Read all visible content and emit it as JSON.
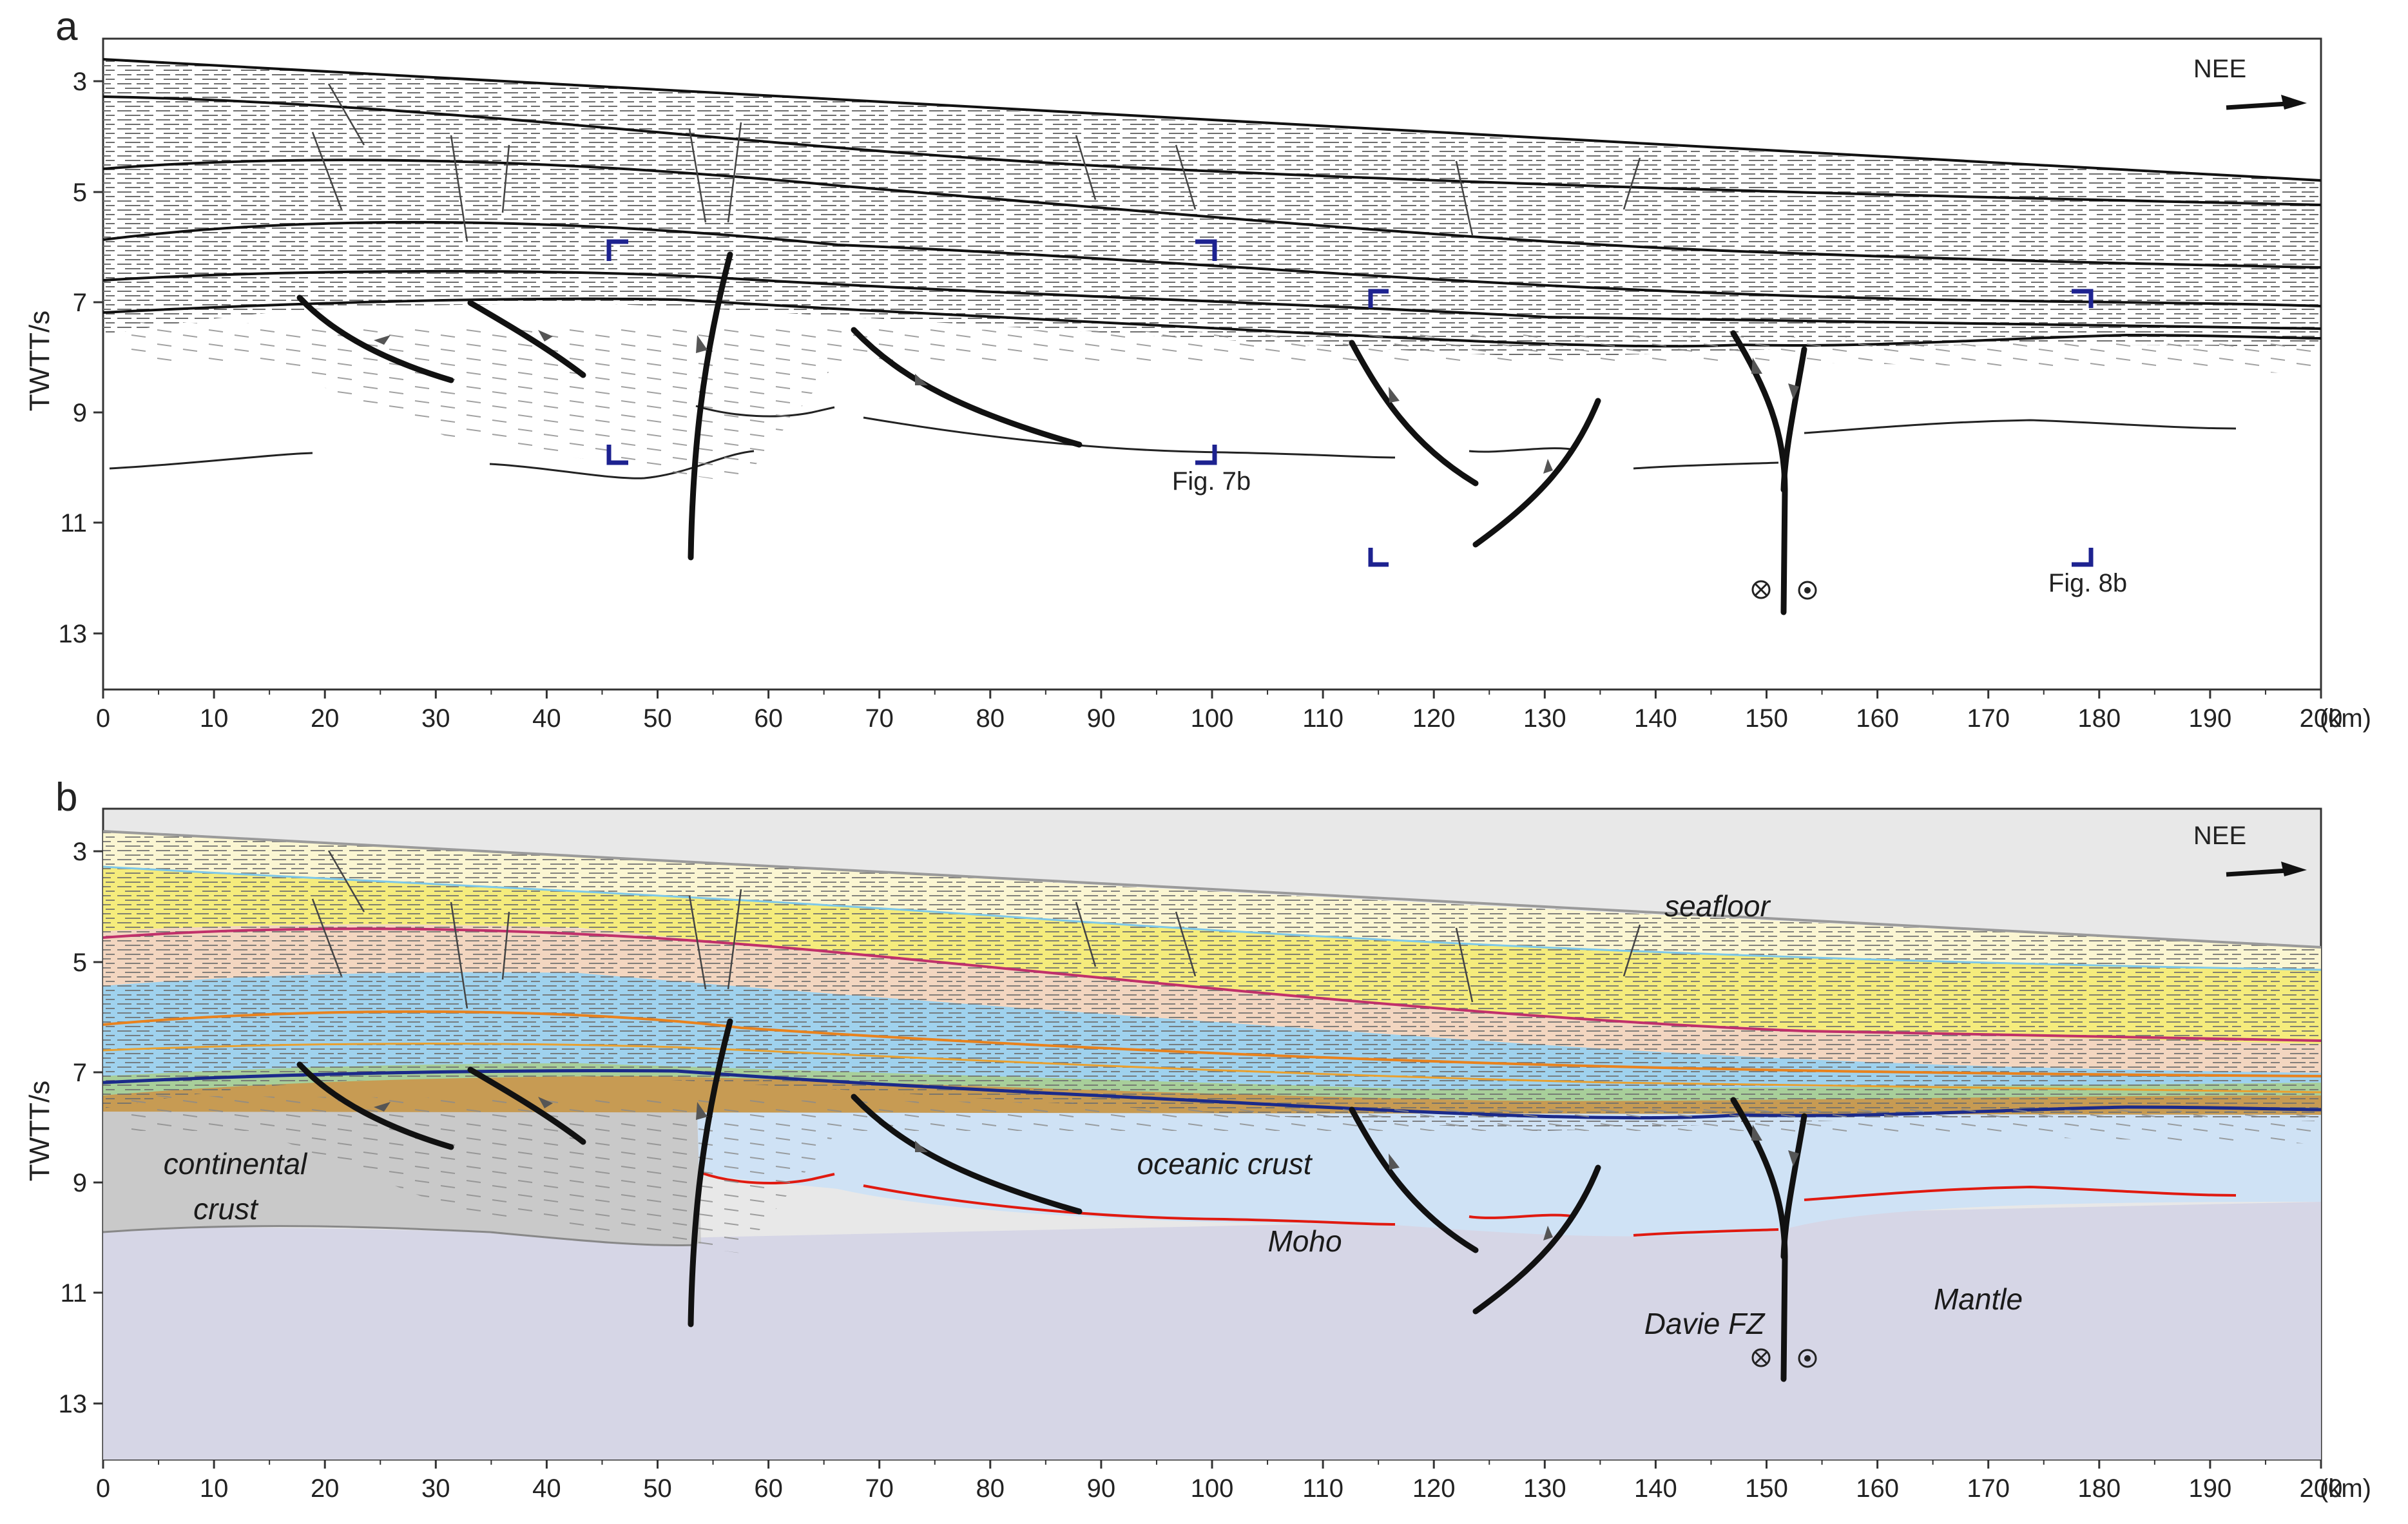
{
  "panels": [
    {
      "letter": "a",
      "ylabel": "TWTT/s",
      "y_ticks": [
        "3",
        "5",
        "7",
        "9",
        "11",
        "13"
      ],
      "x_ticks": [
        "0",
        "10",
        "20",
        "30",
        "40",
        "50",
        "60",
        "70",
        "80",
        "90",
        "100",
        "110",
        "120",
        "130",
        "140",
        "150",
        "160",
        "170",
        "180",
        "190",
        "200"
      ],
      "x_unit": "(km)",
      "direction": "NEE",
      "refs": [
        "Fig. 7b",
        "Fig. 8b"
      ]
    },
    {
      "letter": "b",
      "ylabel": "TWTT/s",
      "y_ticks": [
        "3",
        "5",
        "7",
        "9",
        "11",
        "13"
      ],
      "x_ticks": [
        "0",
        "10",
        "20",
        "30",
        "40",
        "50",
        "60",
        "70",
        "80",
        "90",
        "100",
        "110",
        "120",
        "130",
        "140",
        "150",
        "160",
        "170",
        "180",
        "190",
        "200"
      ],
      "x_unit": "(km)",
      "direction": "NEE",
      "labels": {
        "seafloor": "seafloor",
        "continental_crust_1": "continental",
        "continental_crust_2": "crust",
        "oceanic_crust": "oceanic crust",
        "moho": "Moho",
        "davie_fz": "Davie FZ",
        "mantle": "Mantle"
      }
    }
  ],
  "colors": {
    "seabed_grey": "#e8e8e8",
    "layer_cream": "#fbf6d2",
    "layer_yellow": "#f5ec7c",
    "layer_peach": "#f3d6c0",
    "layer_blue": "#9fd2ee",
    "layer_green": "#a8cf9a",
    "layer_brown": "#c79b53",
    "continental": "#c9c9c9",
    "oceanic": "#cfe2f5",
    "mantle": "#d6d6e6",
    "moho_line": "#e01a10",
    "basement_line": "#1b2a8a",
    "fault": "#111111",
    "bracket": "#1d2290"
  }
}
